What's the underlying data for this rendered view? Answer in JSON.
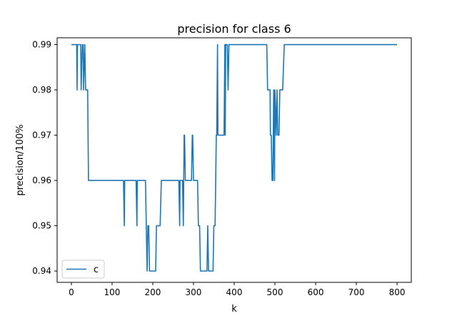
{
  "chart_data": {
    "type": "line",
    "title": "precision for class 6",
    "xlabel": "k",
    "ylabel": "precision/100%",
    "xlim": [
      -35,
      835
    ],
    "ylim": [
      0.9375,
      0.9915
    ],
    "xticks": [
      0,
      100,
      200,
      300,
      400,
      500,
      600,
      700,
      800
    ],
    "yticks": [
      0.94,
      0.95,
      0.96,
      0.97,
      0.98,
      0.99
    ],
    "ytick_labels": [
      "0.94",
      "0.95",
      "0.96",
      "0.97",
      "0.98",
      "0.99"
    ],
    "grid": false,
    "legend": {
      "position": "lower-left",
      "entries": [
        "c"
      ]
    },
    "series": [
      {
        "name": "c",
        "color": "#1f77b4",
        "points": [
          [
            0,
            0.99
          ],
          [
            13,
            0.99
          ],
          [
            14,
            0.98
          ],
          [
            15,
            0.99
          ],
          [
            23,
            0.99
          ],
          [
            24,
            0.98
          ],
          [
            27,
            0.99
          ],
          [
            29,
            0.99
          ],
          [
            30,
            0.98
          ],
          [
            33,
            0.99
          ],
          [
            35,
            0.98
          ],
          [
            40,
            0.98
          ],
          [
            42,
            0.96
          ],
          [
            128,
            0.96
          ],
          [
            130,
            0.95
          ],
          [
            131,
            0.96
          ],
          [
            159,
            0.96
          ],
          [
            161,
            0.95
          ],
          [
            162,
            0.96
          ],
          [
            182,
            0.96
          ],
          [
            184,
            0.95
          ],
          [
            186,
            0.94
          ],
          [
            188,
            0.95
          ],
          [
            190,
            0.95
          ],
          [
            192,
            0.94
          ],
          [
            207,
            0.94
          ],
          [
            209,
            0.95
          ],
          [
            218,
            0.95
          ],
          [
            221,
            0.96
          ],
          [
            264,
            0.96
          ],
          [
            266,
            0.95
          ],
          [
            267,
            0.96
          ],
          [
            273,
            0.96
          ],
          [
            275,
            0.95
          ],
          [
            277,
            0.97
          ],
          [
            278,
            0.97
          ],
          [
            280,
            0.96
          ],
          [
            295,
            0.96
          ],
          [
            297,
            0.97
          ],
          [
            298,
            0.97
          ],
          [
            300,
            0.96
          ],
          [
            310,
            0.96
          ],
          [
            312,
            0.95
          ],
          [
            315,
            0.95
          ],
          [
            317,
            0.94
          ],
          [
            333,
            0.94
          ],
          [
            335,
            0.95
          ],
          [
            337,
            0.94
          ],
          [
            348,
            0.94
          ],
          [
            350,
            0.95
          ],
          [
            353,
            0.95
          ],
          [
            356,
            0.97
          ],
          [
            357,
            0.97
          ],
          [
            359,
            0.99
          ],
          [
            360,
            0.97
          ],
          [
            375,
            0.97
          ],
          [
            377,
            0.99
          ],
          [
            378,
            0.97
          ],
          [
            379,
            0.99
          ],
          [
            383,
            0.99
          ],
          [
            385,
            0.98
          ],
          [
            387,
            0.99
          ],
          [
            480,
            0.99
          ],
          [
            482,
            0.98
          ],
          [
            488,
            0.98
          ],
          [
            489,
            0.97
          ],
          [
            491,
            0.97
          ],
          [
            493,
            0.96
          ],
          [
            495,
            0.96
          ],
          [
            497,
            0.98
          ],
          [
            499,
            0.96
          ],
          [
            500,
            0.98
          ],
          [
            503,
            0.97
          ],
          [
            505,
            0.98
          ],
          [
            507,
            0.97
          ],
          [
            510,
            0.97
          ],
          [
            512,
            0.98
          ],
          [
            519,
            0.98
          ],
          [
            523,
            0.99
          ],
          [
            800,
            0.99
          ]
        ]
      }
    ]
  }
}
